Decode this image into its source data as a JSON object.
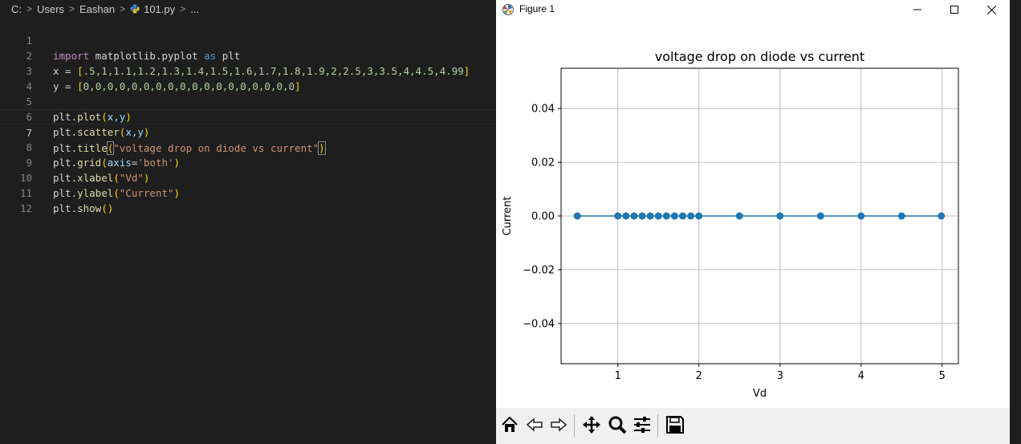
{
  "breadcrumb": [
    "C:",
    "Users",
    "Eashan",
    "101.py",
    "..."
  ],
  "code_lines": [
    {
      "n": "1"
    },
    {
      "n": "2"
    },
    {
      "n": "3"
    },
    {
      "n": "4"
    },
    {
      "n": "5"
    },
    {
      "n": "6"
    },
    {
      "n": "7"
    },
    {
      "n": "8"
    },
    {
      "n": "9"
    },
    {
      "n": "10"
    },
    {
      "n": "11"
    },
    {
      "n": "12"
    }
  ],
  "code": {
    "l1": {
      "t0": "import",
      "t1": " matplotlib.pyplot ",
      "t2": "as",
      "t3": " plt"
    },
    "l2": {
      "t0": "x = ",
      "t1": "[",
      "t2": ".5,1,1.1,1.2,1.3,1.4,1.5,1.6,1.7,1.8,1.9,2,2.5,3,3.5,4,4.5,4.99",
      "t3": "]"
    },
    "l3": {
      "t0": "y = ",
      "t1": "[",
      "t2": "0,0,0,0,0,0,0,0,0,0,0,0,0,0,0,0,0,0",
      "t3": "]"
    },
    "l5": {
      "t0": "plt.",
      "t1": "plot",
      "t2": "(",
      "t3": "x,y",
      "t4": ")"
    },
    "l6": {
      "t0": "plt.",
      "t1": "scatter",
      "t2": "(",
      "t3": "x,y",
      "t4": ")"
    },
    "l7": {
      "t0": "plt.",
      "t1": "title",
      "t2": "(",
      "t3": "\"voltage drop on diode vs current\"",
      "t4": ")"
    },
    "l8": {
      "t0": "plt.",
      "t1": "grid",
      "t2": "(",
      "t3": "axis",
      "t4": "=",
      "t5": "'both'",
      "t6": ")"
    },
    "l9": {
      "t0": "plt.",
      "t1": "xlabel",
      "t2": "(",
      "t3": "\"Vd\"",
      "t4": ")"
    },
    "l10": {
      "t0": "plt.",
      "t1": "ylabel",
      "t2": "(",
      "t3": "\"Current\"",
      "t4": ")"
    },
    "l11": {
      "t0": "plt.",
      "t1": "show",
      "t2": "()"
    }
  },
  "figure": {
    "title": "Figure 1",
    "toolbar": [
      "home-icon",
      "back-icon",
      "forward-icon",
      "pan-icon",
      "zoom-icon",
      "configure-icon",
      "save-icon"
    ]
  },
  "chart_data": {
    "type": "line",
    "title": "voltage drop on diode vs current",
    "xlabel": "Vd",
    "ylabel": "Current",
    "x": [
      0.5,
      1,
      1.1,
      1.2,
      1.3,
      1.4,
      1.5,
      1.6,
      1.7,
      1.8,
      1.9,
      2,
      2.5,
      3,
      3.5,
      4,
      4.5,
      4.99
    ],
    "series": [
      {
        "values": [
          0,
          0,
          0,
          0,
          0,
          0,
          0,
          0,
          0,
          0,
          0,
          0,
          0,
          0,
          0,
          0,
          0,
          0
        ]
      }
    ],
    "xlim": [
      0.3,
      5.2
    ],
    "ylim": [
      -0.055,
      0.055
    ],
    "xticks": [
      1,
      2,
      3,
      4,
      5
    ],
    "xtick_labels": [
      "1",
      "2",
      "3",
      "4",
      "5"
    ],
    "yticks": [
      0.04,
      0.02,
      0,
      -0.02,
      -0.04
    ],
    "ytick_labels": [
      "0.04",
      "0.02",
      "0.00",
      "−0.02",
      "−0.04"
    ],
    "grid": true,
    "markers": true,
    "color": "#1f77b4"
  }
}
